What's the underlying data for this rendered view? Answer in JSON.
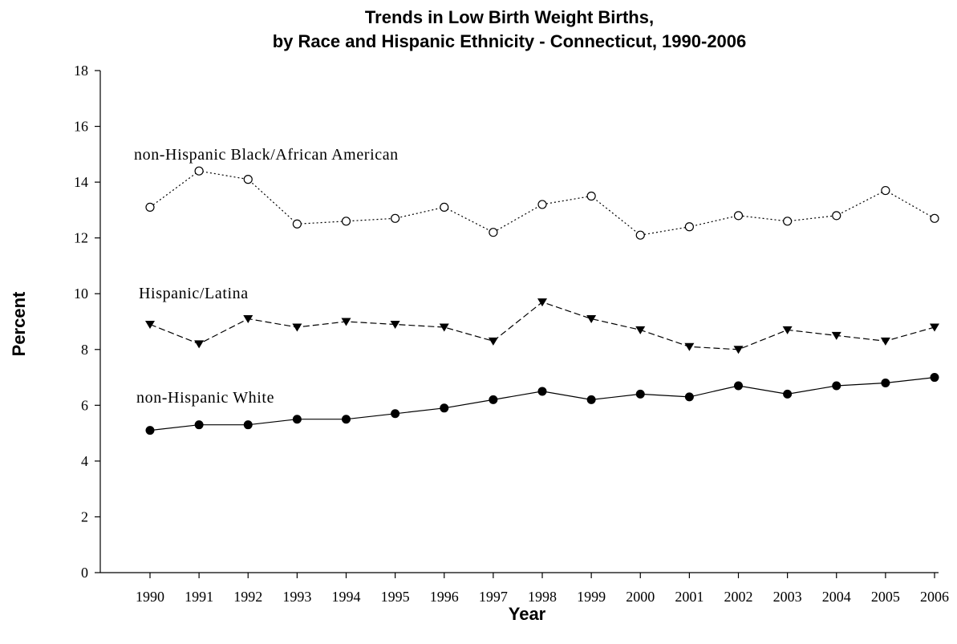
{
  "chart_data": {
    "type": "line",
    "title_line1": "Trends in Low Birth Weight Births,",
    "title_line2": "by Race and Hispanic Ethnicity - Connecticut, 1990-2006",
    "xlabel": "Year",
    "ylabel": "Percent",
    "x": [
      "1990",
      "1991",
      "1992",
      "1993",
      "1994",
      "1995",
      "1996",
      "1997",
      "1998",
      "1999",
      "2000",
      "2001",
      "2002",
      "2003",
      "2004",
      "2005",
      "2006"
    ],
    "ylim": [
      0,
      18
    ],
    "yticks": [
      "0",
      "2",
      "4",
      "6",
      "8",
      "10",
      "12",
      "14",
      "16",
      "18"
    ],
    "grid": false,
    "series": [
      {
        "name": "non-Hispanic Black/African American",
        "marker": "open-circle",
        "line_style": "dotted",
        "values": [
          13.1,
          14.4,
          14.1,
          12.5,
          12.6,
          12.7,
          13.1,
          12.2,
          13.2,
          13.5,
          12.1,
          12.4,
          12.8,
          12.6,
          12.8,
          13.7,
          12.7
        ]
      },
      {
        "name": "Hispanic/Latina",
        "marker": "filled-down-triangle",
        "line_style": "dashed",
        "values": [
          8.9,
          8.2,
          9.1,
          8.8,
          9.0,
          8.9,
          8.8,
          8.3,
          9.7,
          9.1,
          8.7,
          8.1,
          8.0,
          8.7,
          8.5,
          8.3,
          8.8
        ]
      },
      {
        "name": "non-Hispanic White",
        "marker": "filled-circle",
        "line_style": "solid",
        "values": [
          5.1,
          5.3,
          5.3,
          5.5,
          5.5,
          5.7,
          5.9,
          6.2,
          6.5,
          6.2,
          6.4,
          6.3,
          6.7,
          6.4,
          6.7,
          6.8,
          7.0
        ]
      }
    ]
  }
}
